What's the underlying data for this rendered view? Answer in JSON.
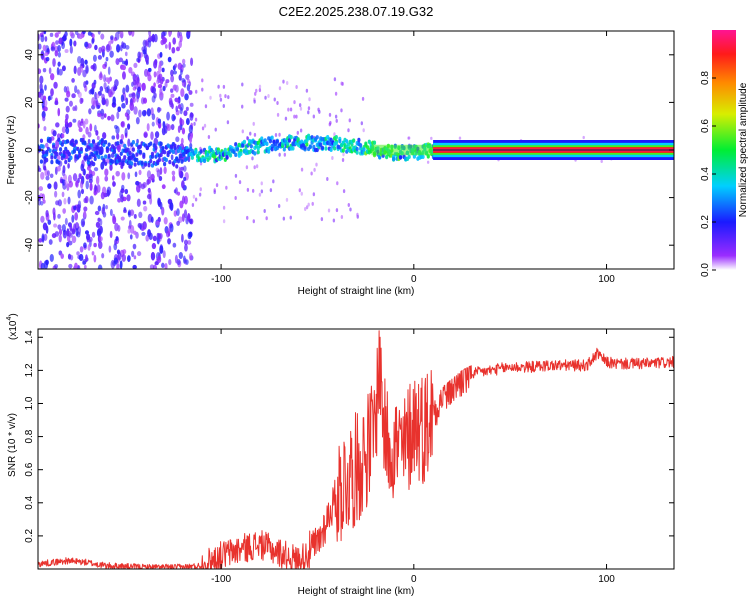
{
  "title": "C2E2.2025.238.07.19.G32",
  "chart_data": [
    {
      "type": "heatmap",
      "name": "spectrogram",
      "xlabel": "Height of straight line (km)",
      "ylabel": "Frequency (Hz)",
      "xlim": [
        -195,
        135
      ],
      "ylim": [
        -50,
        50
      ],
      "xticks": [
        -100,
        0,
        100
      ],
      "yticks": [
        -40,
        -20,
        0,
        20,
        40
      ],
      "colorbar": {
        "label": "Normalized spectral amplitude",
        "range": [
          0.0,
          1.0
        ],
        "ticks": [
          0.0,
          0.2,
          0.4,
          0.6,
          0.8
        ]
      },
      "ridge": [
        {
          "x": -195,
          "y": 0
        },
        {
          "x": -120,
          "y": -2
        },
        {
          "x": -100,
          "y": -2
        },
        {
          "x": -80,
          "y": 2
        },
        {
          "x": -60,
          "y": 3
        },
        {
          "x": -40,
          "y": 3
        },
        {
          "x": -25,
          "y": 1
        },
        {
          "x": -15,
          "y": -1
        },
        {
          "x": 0,
          "y": -1
        },
        {
          "x": 10,
          "y": 0
        },
        {
          "x": 135,
          "y": 0
        }
      ]
    },
    {
      "type": "line",
      "name": "snr",
      "xlabel": "Height of straight line (km)",
      "ylabel": "SNR (10 * v/v)",
      "yscale_label": "(x10",
      "yscale_exp": "4",
      "xlim": [
        -195,
        135
      ],
      "ylim": [
        0,
        1.45
      ],
      "xticks": [
        -100,
        0,
        100
      ],
      "yticks": [
        0.2,
        0.4,
        0.6,
        0.8,
        1.0,
        1.2,
        1.4
      ],
      "color": "#e8322d",
      "series": [
        {
          "name": "SNR",
          "x": [
            -195,
            -180,
            -170,
            -160,
            -140,
            -120,
            -110,
            -100,
            -90,
            -80,
            -70,
            -60,
            -50,
            -45,
            -40,
            -35,
            -30,
            -25,
            -20,
            -18,
            -15,
            -10,
            -5,
            0,
            5,
            10,
            15,
            20,
            25,
            30,
            40,
            50,
            60,
            70,
            80,
            90,
            95,
            100,
            105,
            110,
            120,
            135
          ],
          "y": [
            0.03,
            0.05,
            0.04,
            0.02,
            0.01,
            0.01,
            0.02,
            0.08,
            0.12,
            0.15,
            0.1,
            0.05,
            0.15,
            0.3,
            0.45,
            0.55,
            0.6,
            0.7,
            0.85,
            1.3,
            0.8,
            0.75,
            0.7,
            0.9,
            0.85,
            0.95,
            1.05,
            1.1,
            1.15,
            1.18,
            1.2,
            1.22,
            1.22,
            1.23,
            1.23,
            1.23,
            1.3,
            1.25,
            1.24,
            1.24,
            1.24,
            1.25
          ]
        }
      ]
    }
  ]
}
